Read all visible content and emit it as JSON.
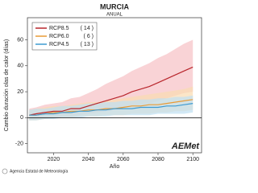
{
  "chart_data": {
    "type": "line",
    "title": "MURCIA",
    "subtitle": "ANUAL",
    "y_label": "Cambio duración olas de calor (días)",
    "x_label": "Año",
    "x": [
      2006,
      2010,
      2015,
      2020,
      2025,
      2030,
      2035,
      2040,
      2045,
      2050,
      2055,
      2060,
      2065,
      2070,
      2075,
      2080,
      2085,
      2090,
      2095,
      2100
    ],
    "xlim": [
      2005,
      2105
    ],
    "xticks": [
      2020,
      2040,
      2060,
      2080,
      2100
    ],
    "ylim": [
      -27,
      77
    ],
    "yticks": [
      -20,
      0,
      20,
      40,
      60
    ],
    "legend": "upper-left",
    "series": [
      {
        "name": "RCP8.5",
        "legend_note": "( 14 )",
        "color": "#b8262c",
        "band_color": "#f6c0c4",
        "values": [
          2,
          3,
          4,
          5,
          5,
          7,
          7,
          9,
          11,
          13,
          15,
          17,
          20,
          22,
          24,
          27,
          30,
          33,
          36,
          39
        ],
        "upper": [
          7,
          8,
          10,
          11,
          12,
          15,
          16,
          19,
          22,
          26,
          29,
          32,
          36,
          39,
          42,
          46,
          49,
          53,
          57,
          60
        ],
        "lower": [
          -2,
          -1,
          0,
          0,
          1,
          1,
          2,
          3,
          4,
          5,
          6,
          7,
          9,
          10,
          11,
          13,
          15,
          17,
          19,
          20
        ]
      },
      {
        "name": "RCP6.0",
        "legend_note": "(  6 )",
        "color": "#e89a35",
        "band_color": "#f9dcb0",
        "values": [
          2,
          2,
          3,
          4,
          4,
          5,
          5,
          6,
          6,
          7,
          7,
          8,
          9,
          9,
          10,
          10,
          11,
          12,
          13,
          14
        ],
        "upper": [
          6,
          7,
          8,
          9,
          9,
          10,
          11,
          12,
          12,
          13,
          14,
          15,
          16,
          17,
          18,
          19,
          20,
          21,
          22,
          24
        ],
        "lower": [
          -2,
          -2,
          -1,
          0,
          0,
          0,
          1,
          1,
          1,
          2,
          2,
          2,
          3,
          3,
          3,
          4,
          4,
          5,
          5,
          6
        ]
      },
      {
        "name": "RCP4.5",
        "legend_note": "( 13 )",
        "color": "#3d9ad1",
        "band_color": "#bfe0f2",
        "values": [
          2,
          2,
          3,
          3,
          4,
          4,
          5,
          5,
          6,
          6,
          7,
          7,
          7,
          8,
          8,
          8,
          9,
          9,
          10,
          11
        ],
        "upper": [
          6,
          7,
          7,
          8,
          9,
          9,
          10,
          11,
          11,
          12,
          12,
          13,
          13,
          14,
          14,
          15,
          15,
          16,
          16,
          17
        ],
        "lower": [
          -2,
          -2,
          -1,
          -1,
          0,
          0,
          0,
          1,
          1,
          1,
          2,
          2,
          2,
          2,
          2,
          3,
          3,
          3,
          3,
          4
        ]
      }
    ]
  },
  "footer": {
    "agency": "Agencia Estatal de Meteorología",
    "logo": "AEMet"
  }
}
